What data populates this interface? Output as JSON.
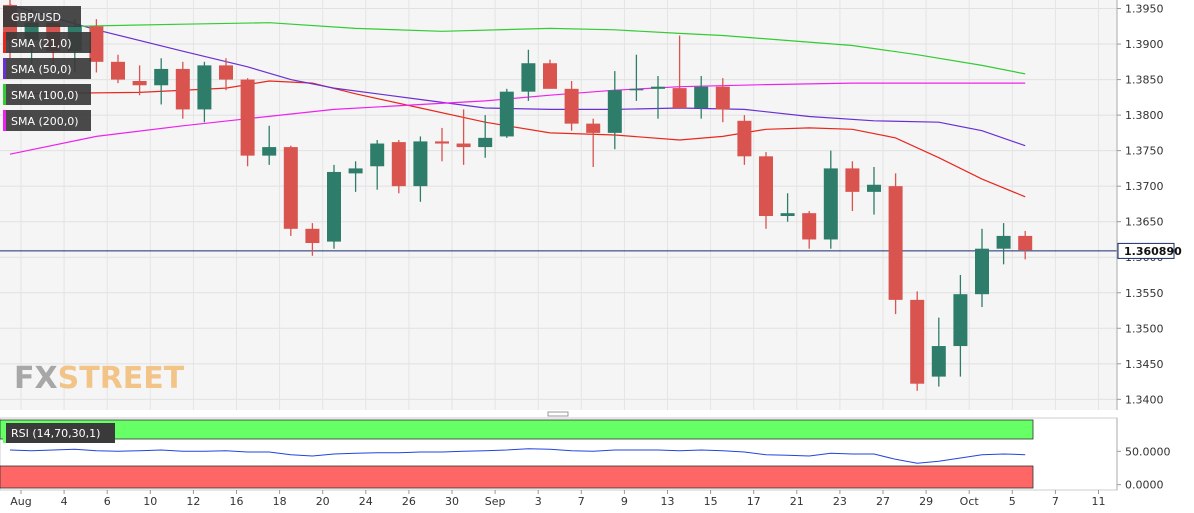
{
  "chart_data": {
    "type": "candlestick",
    "symbol": "GBP/USD",
    "current_price": "1.360890",
    "current_value": 1.36089,
    "ylim": [
      1.3385,
      1.3962
    ],
    "y_ticks": [
      "1.3950",
      "1.3900",
      "1.3850",
      "1.3800",
      "1.3750",
      "1.3700",
      "1.3650",
      "1.3600",
      "1.3550",
      "1.3500",
      "1.3450",
      "1.3400"
    ],
    "x_ticks": [
      "Aug",
      "4",
      "6",
      "10",
      "12",
      "16",
      "18",
      "20",
      "24",
      "26",
      "30",
      "Sep",
      "3",
      "7",
      "9",
      "13",
      "15",
      "17",
      "21",
      "23",
      "27",
      "29",
      "Oct",
      "5",
      "7",
      "11"
    ],
    "colors": {
      "up": "#2e7d6a",
      "down": "#d9534f",
      "sma21": "#e8281e",
      "sma50": "#6a2fd3",
      "sma100": "#33cc33",
      "sma200": "#ee22ee",
      "price_line": "#1a2a6c",
      "rsi_line": "#2244dd",
      "overbought": "#66ff66",
      "oversold": "#ff6666"
    },
    "candles": [
      {
        "date": "Jul 30",
        "o": 1.3955,
        "h": 1.3985,
        "l": 1.388,
        "c": 1.3905
      },
      {
        "date": "Aug 2",
        "o": 1.3905,
        "h": 1.395,
        "l": 1.387,
        "c": 1.393
      },
      {
        "date": "Aug 3",
        "o": 1.393,
        "h": 1.3945,
        "l": 1.387,
        "c": 1.389
      },
      {
        "date": "Aug 4",
        "o": 1.389,
        "h": 1.3935,
        "l": 1.386,
        "c": 1.3925
      },
      {
        "date": "Aug 5",
        "o": 1.3925,
        "h": 1.3935,
        "l": 1.386,
        "c": 1.3875
      },
      {
        "date": "Aug 6",
        "o": 1.3875,
        "h": 1.3885,
        "l": 1.3845,
        "c": 1.385
      },
      {
        "date": "Aug 9",
        "o": 1.3848,
        "h": 1.387,
        "l": 1.3828,
        "c": 1.3842
      },
      {
        "date": "Aug 10",
        "o": 1.3842,
        "h": 1.388,
        "l": 1.3815,
        "c": 1.3865
      },
      {
        "date": "Aug 11",
        "o": 1.3865,
        "h": 1.3875,
        "l": 1.3795,
        "c": 1.3808
      },
      {
        "date": "Aug 12",
        "o": 1.3808,
        "h": 1.3875,
        "l": 1.379,
        "c": 1.387
      },
      {
        "date": "Aug 13",
        "o": 1.387,
        "h": 1.388,
        "l": 1.3835,
        "c": 1.385
      },
      {
        "date": "Aug 16",
        "o": 1.385,
        "h": 1.3852,
        "l": 1.3728,
        "c": 1.3743
      },
      {
        "date": "Aug 17",
        "o": 1.3743,
        "h": 1.3785,
        "l": 1.373,
        "c": 1.3755
      },
      {
        "date": "Aug 18",
        "o": 1.3755,
        "h": 1.3757,
        "l": 1.363,
        "c": 1.364
      },
      {
        "date": "Aug 19",
        "o": 1.364,
        "h": 1.3648,
        "l": 1.3602,
        "c": 1.362
      },
      {
        "date": "Aug 20",
        "o": 1.3622,
        "h": 1.373,
        "l": 1.3612,
        "c": 1.372
      },
      {
        "date": "Aug 23",
        "o": 1.3718,
        "h": 1.3735,
        "l": 1.3692,
        "c": 1.3725
      },
      {
        "date": "Aug 24",
        "o": 1.3728,
        "h": 1.3765,
        "l": 1.3695,
        "c": 1.376
      },
      {
        "date": "Aug 25",
        "o": 1.3762,
        "h": 1.3765,
        "l": 1.369,
        "c": 1.37
      },
      {
        "date": "Aug 26",
        "o": 1.37,
        "h": 1.377,
        "l": 1.3678,
        "c": 1.3763
      },
      {
        "date": "Aug 27",
        "o": 1.3763,
        "h": 1.3782,
        "l": 1.3735,
        "c": 1.376
      },
      {
        "date": "Aug 30",
        "o": 1.376,
        "h": 1.3808,
        "l": 1.373,
        "c": 1.3755
      },
      {
        "date": "Aug 31",
        "o": 1.3755,
        "h": 1.38,
        "l": 1.374,
        "c": 1.3768
      },
      {
        "date": "Sep 1",
        "o": 1.377,
        "h": 1.3837,
        "l": 1.3768,
        "c": 1.3833
      },
      {
        "date": "Sep 2",
        "o": 1.3833,
        "h": 1.3892,
        "l": 1.382,
        "c": 1.3873
      },
      {
        "date": "Sep 3",
        "o": 1.3873,
        "h": 1.3878,
        "l": 1.3838,
        "c": 1.3837
      },
      {
        "date": "Sep 6",
        "o": 1.3837,
        "h": 1.3848,
        "l": 1.3778,
        "c": 1.3788
      },
      {
        "date": "Sep 7",
        "o": 1.3788,
        "h": 1.3795,
        "l": 1.3727,
        "c": 1.3775
      },
      {
        "date": "Sep 8",
        "o": 1.3775,
        "h": 1.3862,
        "l": 1.3752,
        "c": 1.3835
      },
      {
        "date": "Sep 9",
        "o": 1.3835,
        "h": 1.3885,
        "l": 1.382,
        "c": 1.3837
      },
      {
        "date": "Sep 10",
        "o": 1.3837,
        "h": 1.3855,
        "l": 1.3795,
        "c": 1.384
      },
      {
        "date": "Sep 13",
        "o": 1.3838,
        "h": 1.3912,
        "l": 1.381,
        "c": 1.381
      },
      {
        "date": "Sep 14",
        "o": 1.381,
        "h": 1.3855,
        "l": 1.3795,
        "c": 1.384
      },
      {
        "date": "Sep 15",
        "o": 1.384,
        "h": 1.3852,
        "l": 1.379,
        "c": 1.3808
      },
      {
        "date": "Sep 16",
        "o": 1.3792,
        "h": 1.38,
        "l": 1.373,
        "c": 1.3742
      },
      {
        "date": "Sep 17",
        "o": 1.3742,
        "h": 1.3748,
        "l": 1.364,
        "c": 1.3658
      },
      {
        "date": "Sep 20",
        "o": 1.3658,
        "h": 1.369,
        "l": 1.365,
        "c": 1.3662
      },
      {
        "date": "Sep 21",
        "o": 1.3662,
        "h": 1.3665,
        "l": 1.3612,
        "c": 1.3625
      },
      {
        "date": "Sep 22",
        "o": 1.3625,
        "h": 1.375,
        "l": 1.3612,
        "c": 1.3725
      },
      {
        "date": "Sep 23",
        "o": 1.3725,
        "h": 1.3735,
        "l": 1.3665,
        "c": 1.3692
      },
      {
        "date": "Sep 24",
        "o": 1.3692,
        "h": 1.3727,
        "l": 1.366,
        "c": 1.3702
      },
      {
        "date": "Sep 27",
        "o": 1.37,
        "h": 1.3718,
        "l": 1.352,
        "c": 1.354
      },
      {
        "date": "Sep 28",
        "o": 1.354,
        "h": 1.3552,
        "l": 1.3412,
        "c": 1.3422
      },
      {
        "date": "Sep 29",
        "o": 1.3432,
        "h": 1.3515,
        "l": 1.3418,
        "c": 1.3475
      },
      {
        "date": "Sep 30",
        "o": 1.3475,
        "h": 1.3575,
        "l": 1.3432,
        "c": 1.3548
      },
      {
        "date": "Oct 1",
        "o": 1.3548,
        "h": 1.364,
        "l": 1.353,
        "c": 1.3612
      },
      {
        "date": "Oct 4",
        "o": 1.3612,
        "h": 1.3648,
        "l": 1.359,
        "c": 1.363
      },
      {
        "date": "Oct 5",
        "o": 1.363,
        "h": 1.3637,
        "l": 1.3597,
        "c": 1.361
      }
    ],
    "overlays": [
      {
        "name": "SMA (21,0)",
        "color": "#e8281e",
        "points": [
          [
            0,
            1.383
          ],
          [
            6,
            1.3832
          ],
          [
            10,
            1.3838
          ],
          [
            12,
            1.3848
          ],
          [
            14,
            1.3845
          ],
          [
            16,
            1.383
          ],
          [
            19,
            1.381
          ],
          [
            22,
            1.379
          ],
          [
            25,
            1.3775
          ],
          [
            28,
            1.3772
          ],
          [
            31,
            1.3765
          ],
          [
            33,
            1.377
          ],
          [
            35,
            1.378
          ],
          [
            37,
            1.3782
          ],
          [
            39,
            1.378
          ],
          [
            41,
            1.3768
          ],
          [
            43,
            1.374
          ],
          [
            45,
            1.371
          ],
          [
            47,
            1.3685
          ]
        ]
      },
      {
        "name": "SMA (50,0)",
        "color": "#6a2fd3",
        "points": [
          [
            0,
            1.3955
          ],
          [
            4,
            1.392
          ],
          [
            8,
            1.389
          ],
          [
            11,
            1.3868
          ],
          [
            13,
            1.385
          ],
          [
            15,
            1.3838
          ],
          [
            19,
            1.3822
          ],
          [
            22,
            1.381
          ],
          [
            25,
            1.3808
          ],
          [
            28,
            1.3808
          ],
          [
            31,
            1.381
          ],
          [
            34,
            1.3808
          ],
          [
            37,
            1.3798
          ],
          [
            40,
            1.3792
          ],
          [
            43,
            1.379
          ],
          [
            45,
            1.3778
          ],
          [
            47,
            1.3757
          ]
        ]
      },
      {
        "name": "SMA (100,0)",
        "color": "#33cc33",
        "points": [
          [
            3,
            1.3925
          ],
          [
            8,
            1.3928
          ],
          [
            12,
            1.393
          ],
          [
            16,
            1.3922
          ],
          [
            20,
            1.3918
          ],
          [
            25,
            1.3922
          ],
          [
            28,
            1.392
          ],
          [
            31,
            1.3915
          ],
          [
            33,
            1.3912
          ],
          [
            36,
            1.3905
          ],
          [
            39,
            1.3898
          ],
          [
            42,
            1.3885
          ],
          [
            45,
            1.387
          ],
          [
            47,
            1.3858
          ]
        ]
      },
      {
        "name": "SMA (200,0)",
        "color": "#ee22ee",
        "points": [
          [
            0,
            1.3745
          ],
          [
            4,
            1.377
          ],
          [
            8,
            1.3785
          ],
          [
            11,
            1.3795
          ],
          [
            15,
            1.3808
          ],
          [
            19,
            1.3815
          ],
          [
            22,
            1.382
          ],
          [
            25,
            1.3828
          ],
          [
            28,
            1.3835
          ],
          [
            31,
            1.384
          ],
          [
            35,
            1.3843
          ],
          [
            39,
            1.3845
          ],
          [
            43,
            1.3845
          ],
          [
            47,
            1.3845
          ]
        ]
      }
    ],
    "rsi": {
      "label": "RSI (14,70,30,1)",
      "ylim": [
        -8,
        100
      ],
      "ticks": [
        "50.0000",
        "0.0000"
      ],
      "values": [
        52,
        51,
        52,
        53,
        51,
        50,
        51,
        52,
        50,
        50,
        51,
        49,
        49,
        45,
        43,
        46,
        47,
        48,
        48,
        49,
        49,
        50,
        51,
        52,
        54,
        53,
        51,
        50,
        52,
        52,
        52,
        51,
        52,
        51,
        49,
        45,
        44,
        43,
        47,
        46,
        46,
        38,
        32,
        35,
        40,
        45,
        46,
        45
      ]
    }
  }
}
